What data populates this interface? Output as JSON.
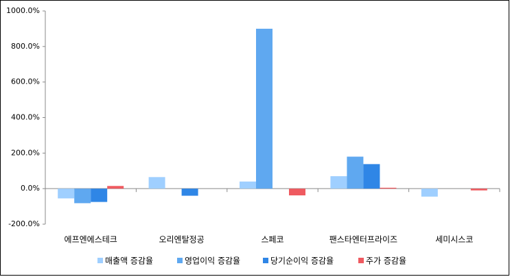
{
  "chart_data": {
    "type": "bar",
    "categories": [
      "에프엔에스테크",
      "오리엔탈정공",
      "스페코",
      "팬스타엔터프라이즈",
      "세미시스코"
    ],
    "series": [
      {
        "name": "매출액 증감율",
        "color": "#9fcfff",
        "values": [
          -55,
          65,
          40,
          70,
          -45
        ]
      },
      {
        "name": "영업이익 증감율",
        "color": "#5fa8f0",
        "values": [
          -82,
          null,
          900,
          180,
          null
        ]
      },
      {
        "name": "당기순이익 증감율",
        "color": "#2f86e6",
        "values": [
          -75,
          -40,
          null,
          138,
          null
        ]
      },
      {
        "name": "주가 증감율",
        "color": "#ef5a60",
        "values": [
          15,
          null,
          -38,
          5,
          -10
        ]
      }
    ],
    "ylim": [
      -200,
      1000
    ],
    "yticks": [
      {
        "value": -200,
        "label": "-200.0%"
      },
      {
        "value": 0,
        "label": "0.0%"
      },
      {
        "value": 200,
        "label": "200.0%"
      },
      {
        "value": 400,
        "label": "400.0%"
      },
      {
        "value": 600,
        "label": "600.0%"
      },
      {
        "value": 800,
        "label": "800.0%"
      },
      {
        "value": 1000,
        "label": "1000.0%"
      }
    ],
    "legend": "bottom"
  }
}
